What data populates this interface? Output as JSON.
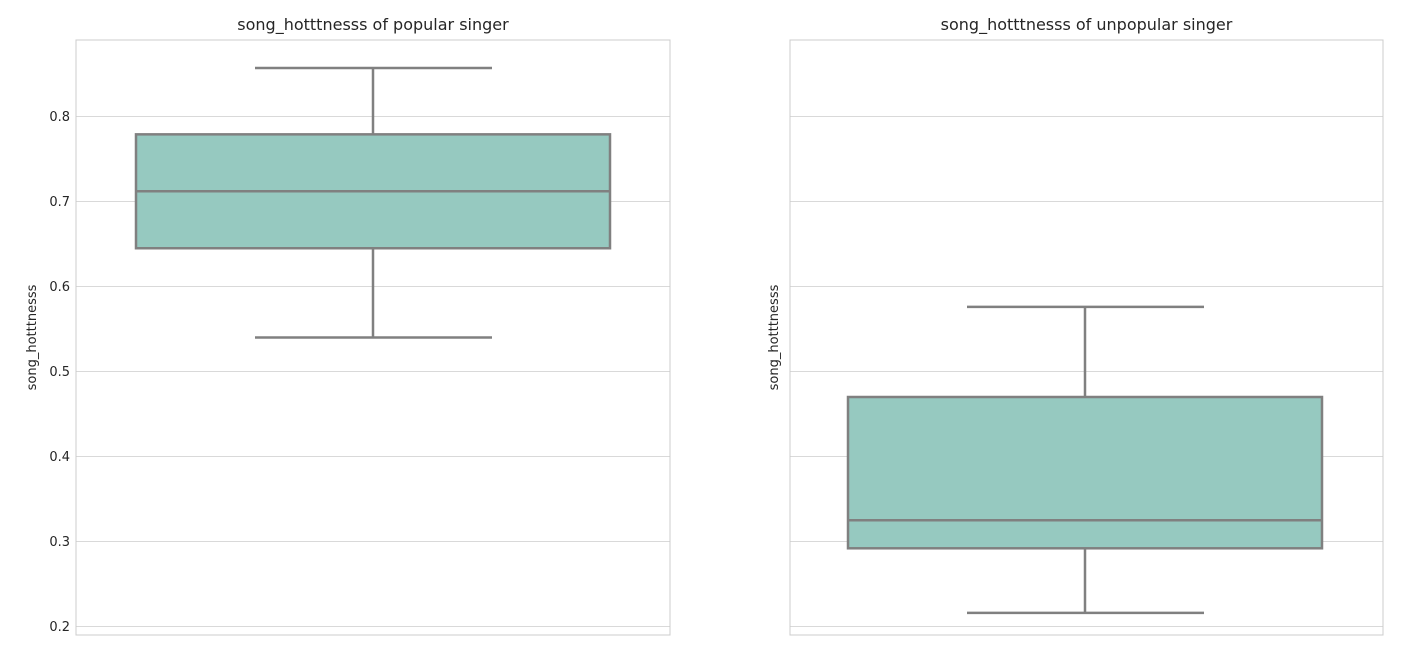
{
  "chart_data": [
    {
      "type": "box",
      "title": "song_hotttnesss of popular singer",
      "ylabel": "song_hotttnesss",
      "ylim": [
        0.19,
        0.89
      ],
      "yticks": [
        0.2,
        0.3,
        0.4,
        0.5,
        0.6,
        0.7,
        0.8
      ],
      "ytick_labels": [
        "0.2",
        "0.3",
        "0.4",
        "0.5",
        "0.6",
        "0.7",
        "0.8"
      ],
      "show_tick_labels": true,
      "box": {
        "whisker_low": 0.54,
        "q1": 0.645,
        "median": 0.712,
        "q3": 0.779,
        "whisker_high": 0.857
      },
      "colors": {
        "box_fill": "#96c9c0",
        "line": "#808080"
      },
      "grid": true
    },
    {
      "type": "box",
      "title": "song_hotttnesss of unpopular singer",
      "ylabel": "song_hotttnesss",
      "ylim": [
        0.19,
        0.89
      ],
      "yticks": [
        0.2,
        0.3,
        0.4,
        0.5,
        0.6,
        0.7,
        0.8
      ],
      "ytick_labels": [],
      "show_tick_labels": false,
      "box": {
        "whisker_low": 0.216,
        "q1": 0.292,
        "median": 0.325,
        "q3": 0.47,
        "whisker_high": 0.576
      },
      "colors": {
        "box_fill": "#96c9c0",
        "line": "#808080"
      },
      "grid": true
    }
  ]
}
